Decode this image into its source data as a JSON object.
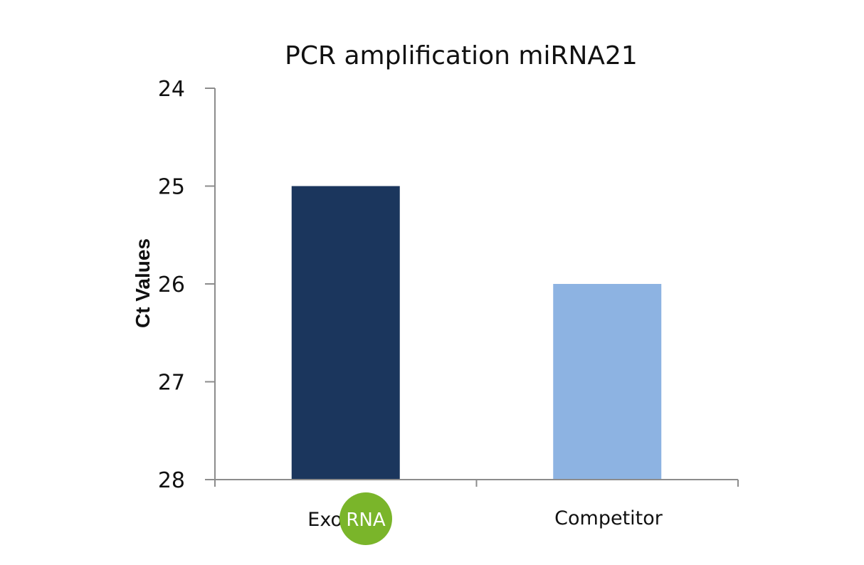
{
  "chart_data": {
    "type": "bar",
    "title": "PCR amplification miRNA21",
    "xlabel": "",
    "ylabel": "Ct Values",
    "ylim": [
      24,
      28
    ],
    "y_axis_inverted": true,
    "y_ticks": [
      24,
      25,
      26,
      27,
      28
    ],
    "categories": [
      "Exo RNA",
      "Competitor"
    ],
    "values": [
      25,
      26
    ],
    "bar_colors": [
      "#1b365d",
      "#8db3e2"
    ],
    "grid": false,
    "legend": "none"
  },
  "labels": {
    "exo_prefix": "Exo",
    "exo_logo": "RNA",
    "competitor": "Competitor"
  },
  "colors": {
    "axis": "#8c8c8c",
    "logo_green": "#7ab52a"
  }
}
